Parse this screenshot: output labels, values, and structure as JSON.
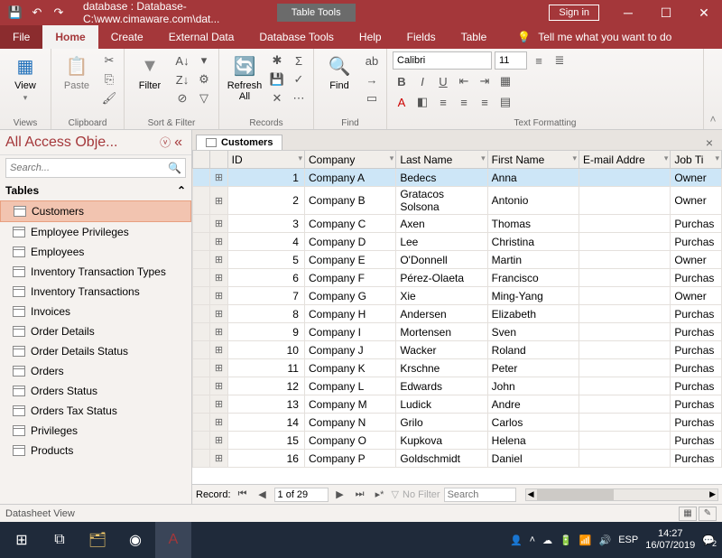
{
  "title": "database : Database- C:\\www.cimaware.com\\dat...",
  "contextTab": "Table Tools",
  "signIn": "Sign in",
  "tabs": {
    "file": "File",
    "home": "Home",
    "create": "Create",
    "external": "External Data",
    "dbtools": "Database Tools",
    "help": "Help",
    "fields": "Fields",
    "table": "Table"
  },
  "tellMe": "Tell me what you want to do",
  "ribbon": {
    "views": {
      "btn": "View",
      "label": "Views"
    },
    "clipboard": {
      "btn": "Paste",
      "label": "Clipboard"
    },
    "sortfilter": {
      "btn": "Filter",
      "label": "Sort & Filter"
    },
    "records": {
      "btn": "Refresh All",
      "label": "Records"
    },
    "find": {
      "btn": "Find",
      "label": "Find"
    },
    "textfmt": {
      "label": "Text Formatting",
      "font": "Calibri",
      "size": "11"
    }
  },
  "nav": {
    "header": "All Access Obje...",
    "searchPlaceholder": "Search...",
    "section": "Tables",
    "items": [
      "Customers",
      "Employee Privileges",
      "Employees",
      "Inventory Transaction Types",
      "Inventory Transactions",
      "Invoices",
      "Order Details",
      "Order Details Status",
      "Orders",
      "Orders Status",
      "Orders Tax Status",
      "Privileges",
      "Products"
    ]
  },
  "docTab": "Customers",
  "columns": [
    "ID",
    "Company",
    "Last Name",
    "First Name",
    "E-mail Addre",
    "Job Ti"
  ],
  "rows": [
    {
      "id": 1,
      "company": "Company A",
      "last": "Bedecs",
      "first": "Anna",
      "email": "",
      "job": "Owner"
    },
    {
      "id": 2,
      "company": "Company B",
      "last": "Gratacos Solsona",
      "first": "Antonio",
      "email": "",
      "job": "Owner"
    },
    {
      "id": 3,
      "company": "Company C",
      "last": "Axen",
      "first": "Thomas",
      "email": "",
      "job": "Purchas"
    },
    {
      "id": 4,
      "company": "Company D",
      "last": "Lee",
      "first": "Christina",
      "email": "",
      "job": "Purchas"
    },
    {
      "id": 5,
      "company": "Company E",
      "last": "O'Donnell",
      "first": "Martin",
      "email": "",
      "job": "Owner"
    },
    {
      "id": 6,
      "company": "Company F",
      "last": "Pérez-Olaeta",
      "first": "Francisco",
      "email": "",
      "job": "Purchas"
    },
    {
      "id": 7,
      "company": "Company G",
      "last": "Xie",
      "first": "Ming-Yang",
      "email": "",
      "job": "Owner"
    },
    {
      "id": 8,
      "company": "Company H",
      "last": "Andersen",
      "first": "Elizabeth",
      "email": "",
      "job": "Purchas"
    },
    {
      "id": 9,
      "company": "Company I",
      "last": "Mortensen",
      "first": "Sven",
      "email": "",
      "job": "Purchas"
    },
    {
      "id": 10,
      "company": "Company J",
      "last": "Wacker",
      "first": "Roland",
      "email": "",
      "job": "Purchas"
    },
    {
      "id": 11,
      "company": "Company K",
      "last": "Krschne",
      "first": "Peter",
      "email": "",
      "job": "Purchas"
    },
    {
      "id": 12,
      "company": "Company L",
      "last": "Edwards",
      "first": "John",
      "email": "",
      "job": "Purchas"
    },
    {
      "id": 13,
      "company": "Company M",
      "last": "Ludick",
      "first": "Andre",
      "email": "",
      "job": "Purchas"
    },
    {
      "id": 14,
      "company": "Company N",
      "last": "Grilo",
      "first": "Carlos",
      "email": "",
      "job": "Purchas"
    },
    {
      "id": 15,
      "company": "Company O",
      "last": "Kupkova",
      "first": "Helena",
      "email": "",
      "job": "Purchas"
    },
    {
      "id": 16,
      "company": "Company P",
      "last": "Goldschmidt",
      "first": "Daniel",
      "email": "",
      "job": "Purchas"
    }
  ],
  "recNav": {
    "label": "Record:",
    "pos": "1 of 29",
    "nofilter": "No Filter",
    "search": "Search"
  },
  "status": "Datasheet View",
  "taskbar": {
    "lang": "ESP",
    "time": "14:27",
    "date": "16/07/2019",
    "notif": "2"
  }
}
